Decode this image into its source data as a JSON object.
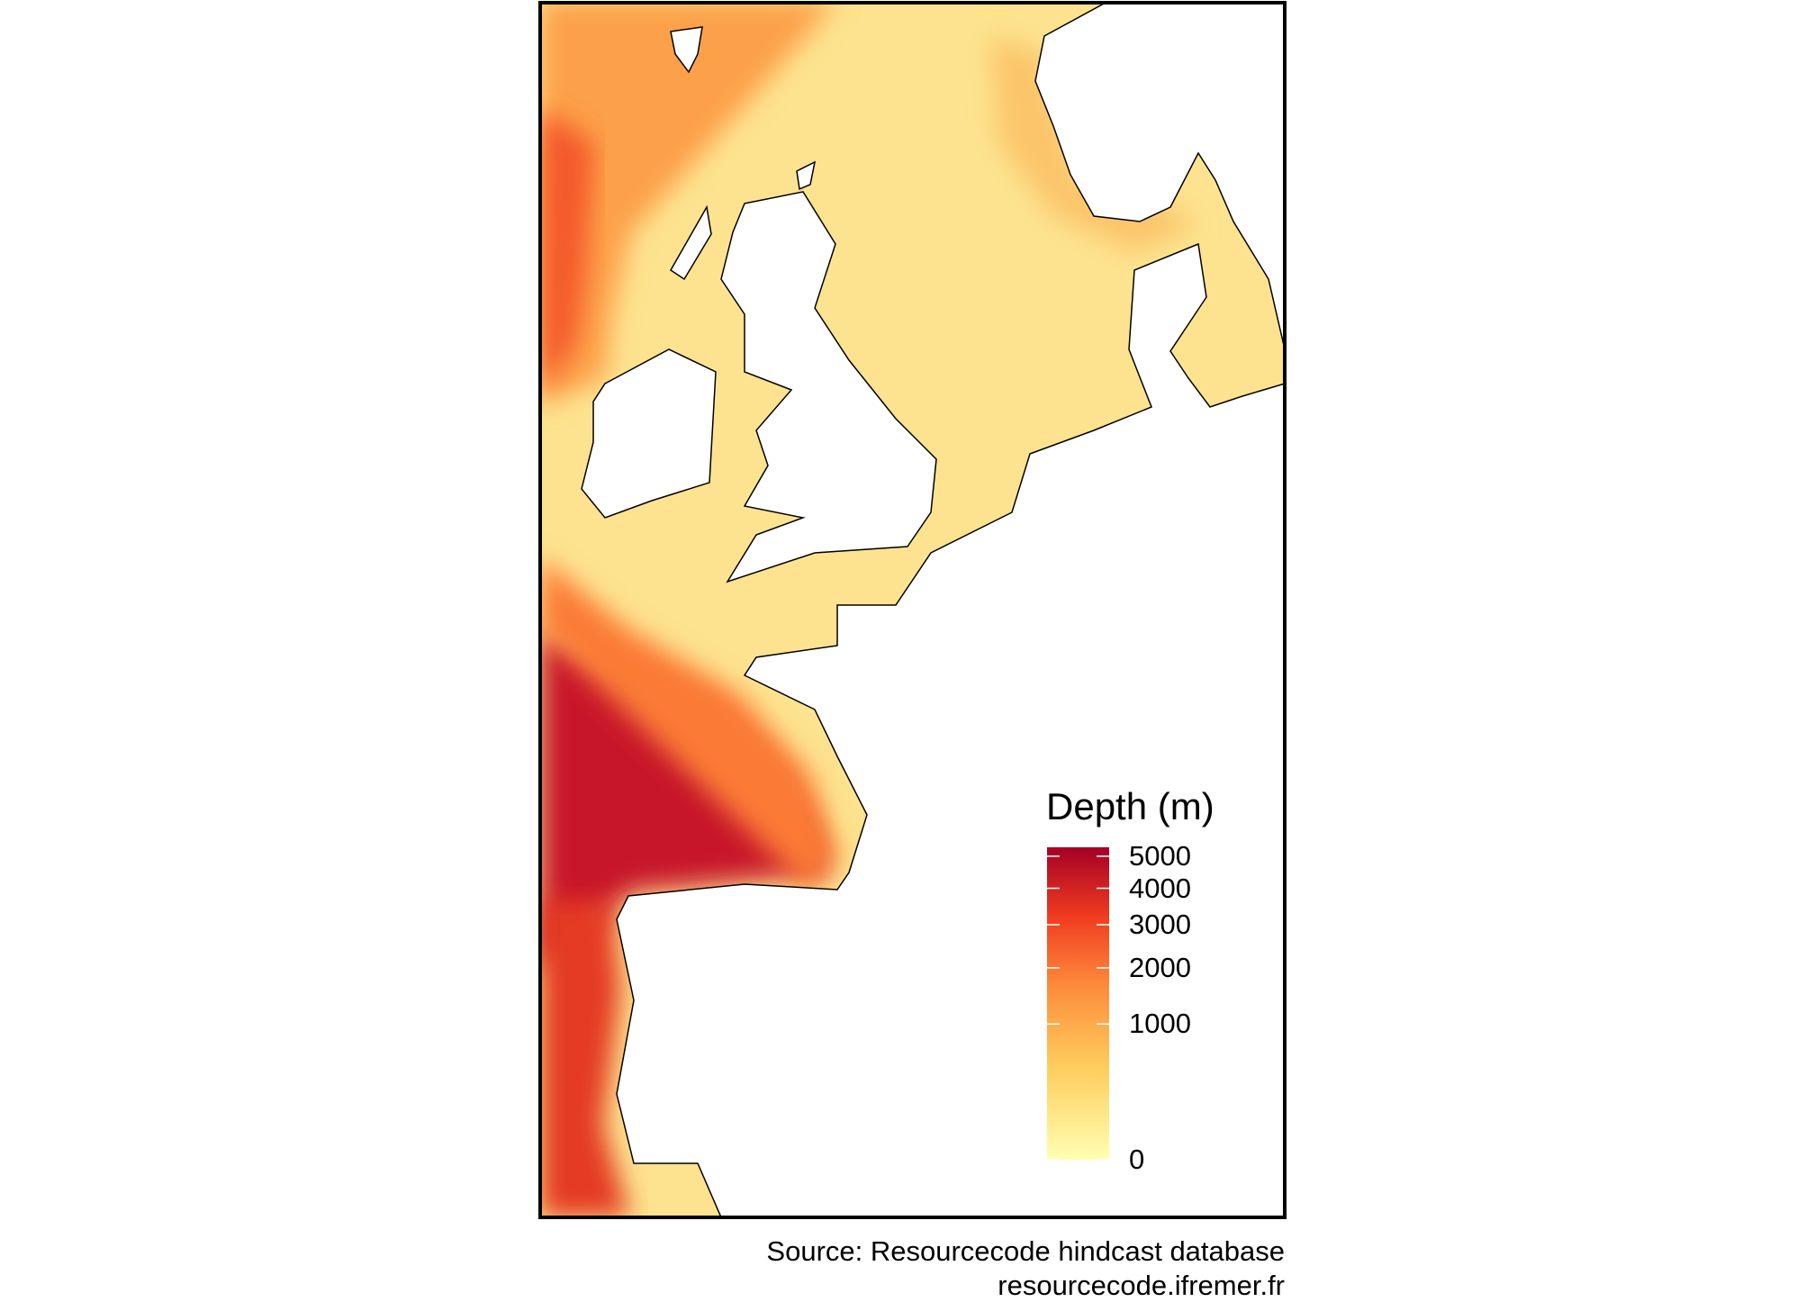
{
  "map": {
    "variable": "Depth",
    "region": "North-East Atlantic / North Sea",
    "land_color": "#ffffff",
    "coastline_color": "#000000"
  },
  "legend": {
    "title": "Depth (m)",
    "scale": "sqrt",
    "range": [
      0,
      5300
    ],
    "ticks": [
      {
        "value": 5000,
        "label": "5000"
      },
      {
        "value": 4000,
        "label": "4000"
      },
      {
        "value": 3000,
        "label": "3000"
      },
      {
        "value": 2000,
        "label": "2000"
      },
      {
        "value": 1000,
        "label": "1000"
      },
      {
        "value": 0,
        "label": "0"
      }
    ],
    "colors": [
      "#ffffb2",
      "#fecc5c",
      "#fd8d3c",
      "#f03b20",
      "#bd0026",
      "#a50026"
    ]
  },
  "caption": {
    "line1": "Source: Resourcecode hindcast database",
    "line2": "resourcecode.ifremer.fr"
  }
}
